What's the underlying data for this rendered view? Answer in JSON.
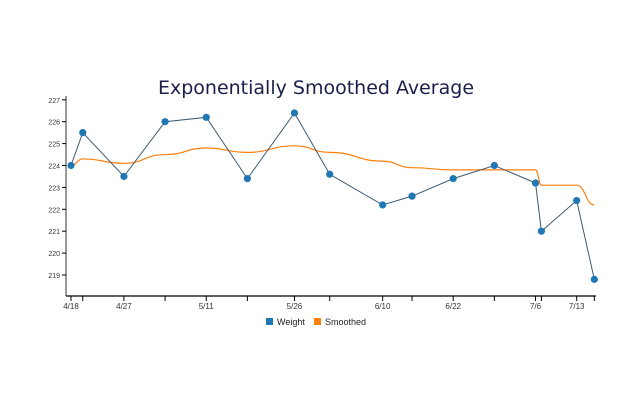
{
  "chart_data": {
    "type": "line",
    "title": "Exponentially Smoothed Average",
    "xlabel": "",
    "ylabel": "",
    "ylim": [
      218,
      227
    ],
    "y_ticks": [
      "219",
      "220",
      "221",
      "222",
      "223",
      "224",
      "225",
      "226",
      "227"
    ],
    "x_tick_labels": [
      "4/18",
      "4/27",
      "5/11",
      "5/26",
      "6/10",
      "6/22",
      "7/6",
      "7/13"
    ],
    "x": [
      "4/18",
      "4/20",
      "4/27",
      "5/4",
      "5/11",
      "5/18",
      "5/26",
      "6/1",
      "6/10",
      "6/15",
      "6/22",
      "6/29",
      "7/6",
      "7/7",
      "7/13",
      "7/16"
    ],
    "series": [
      {
        "name": "Weight",
        "color": "#1f77b4",
        "markers": true,
        "values": [
          224.0,
          225.5,
          223.5,
          226.0,
          226.2,
          223.4,
          226.4,
          223.6,
          222.2,
          222.6,
          223.4,
          224.0,
          223.2,
          221.0,
          222.4,
          218.8
        ]
      },
      {
        "name": "Smoothed",
        "color": "#ff7f0e",
        "markers": false,
        "values": [
          224.0,
          224.3,
          224.1,
          224.5,
          224.8,
          224.6,
          224.9,
          224.6,
          224.2,
          223.9,
          223.8,
          223.8,
          223.8,
          223.1,
          223.1,
          222.2
        ]
      }
    ],
    "grid": false,
    "legend": "bottom-center"
  }
}
